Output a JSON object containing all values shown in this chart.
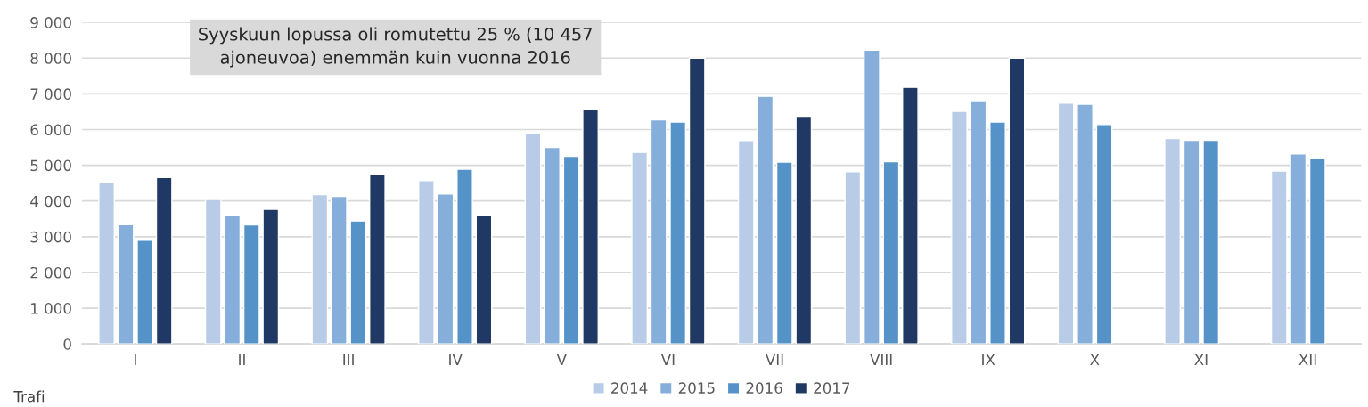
{
  "chart_data": {
    "type": "bar",
    "categories": [
      "I",
      "II",
      "III",
      "IV",
      "V",
      "VI",
      "VII",
      "VIII",
      "IX",
      "X",
      "XI",
      "XII"
    ],
    "series": [
      {
        "name": "2014",
        "color": "#b8cce8",
        "values": [
          4510,
          4040,
          4180,
          4570,
          5900,
          5360,
          5690,
          4820,
          6510,
          6740,
          5750,
          4840
        ]
      },
      {
        "name": "2015",
        "color": "#86aedb",
        "values": [
          3340,
          3600,
          4130,
          4200,
          5500,
          6270,
          6930,
          8220,
          6810,
          6710,
          5700,
          5320
        ]
      },
      {
        "name": "2016",
        "color": "#5592c8",
        "values": [
          2900,
          3330,
          3440,
          4890,
          5250,
          6210,
          5090,
          5100,
          6210,
          6140,
          5700,
          5200
        ]
      },
      {
        "name": "2017",
        "color": "#203864",
        "values": [
          4660,
          3770,
          4750,
          3600,
          6570,
          8000,
          6370,
          7180,
          8000,
          null,
          null,
          null
        ]
      }
    ],
    "ylim": [
      0,
      9000
    ],
    "yticks": [
      {
        "value": 0,
        "label": "0"
      },
      {
        "value": 1000,
        "label": "1 000"
      },
      {
        "value": 2000,
        "label": "2 000"
      },
      {
        "value": 3000,
        "label": "3 000"
      },
      {
        "value": 4000,
        "label": "4 000"
      },
      {
        "value": 5000,
        "label": "5 000"
      },
      {
        "value": 6000,
        "label": "6 000"
      },
      {
        "value": 7000,
        "label": "7 000"
      },
      {
        "value": 8000,
        "label": "8 000"
      },
      {
        "value": 9000,
        "label": "9 000"
      }
    ],
    "grid": "y",
    "legend": "bottom",
    "annotations": [
      "Syyskuun lopussa oli romutettu 25 % (10 457\najoneuvoa) enemmän kuin vuonna 2016",
      "Trafi"
    ]
  }
}
